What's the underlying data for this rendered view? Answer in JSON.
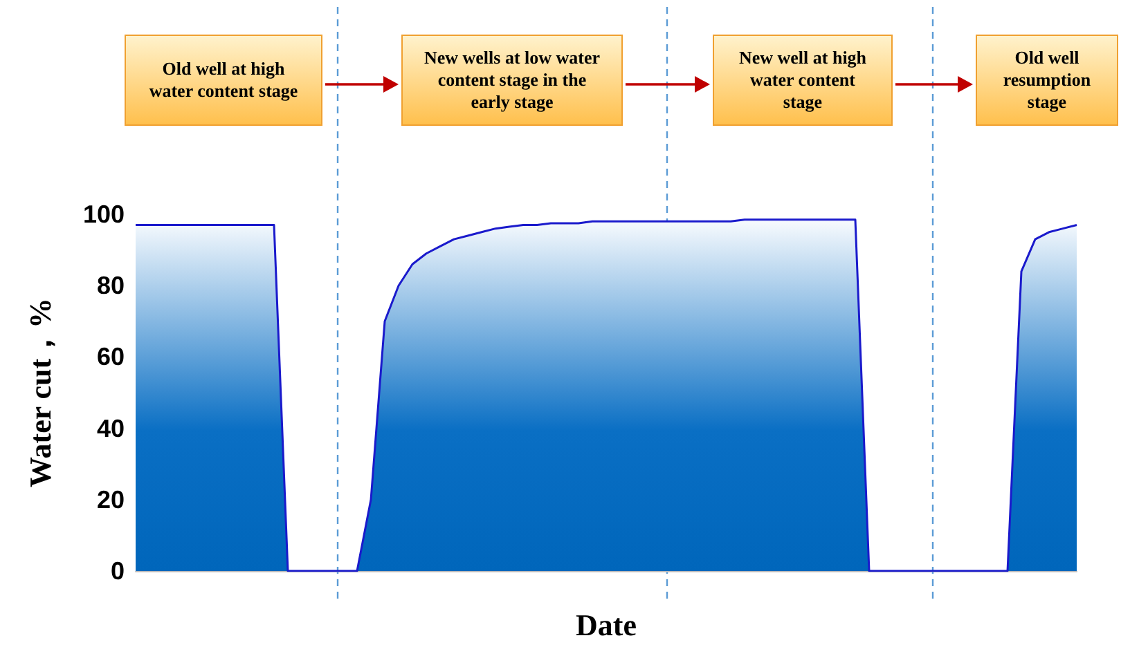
{
  "chart_data": {
    "type": "area",
    "xlabel": "Date",
    "ylabel": "Water cut，%",
    "categories": [
      null,
      null,
      null,
      null,
      null,
      null,
      null,
      null,
      null,
      null,
      null,
      null,
      null,
      null,
      null,
      null,
      null,
      null,
      null,
      null,
      null,
      null,
      null,
      null,
      null,
      null,
      null,
      null,
      null,
      null,
      null,
      null,
      null,
      null,
      null,
      null,
      null,
      null,
      null,
      null,
      null,
      null,
      null,
      null,
      null,
      null,
      null,
      null,
      null,
      null,
      null,
      null,
      null,
      null,
      null,
      null,
      null,
      null,
      null,
      null,
      null,
      null,
      null,
      null,
      null,
      null,
      null,
      null,
      null
    ],
    "series": [
      {
        "color": "#1a1acc",
        "values": [
          97,
          97,
          97,
          97,
          97,
          97,
          97,
          97,
          97,
          97,
          97,
          0,
          0,
          0,
          0,
          0,
          0,
          20,
          70,
          80,
          86,
          89,
          91,
          93,
          94,
          95,
          96,
          96.5,
          97,
          97,
          97.5,
          97.5,
          97.5,
          98,
          98,
          98,
          98,
          98,
          98,
          98,
          98,
          98,
          98,
          98,
          98.5,
          98.5,
          98.5,
          98.5,
          98.5,
          98.5,
          98.5,
          98.5,
          98.5,
          0,
          0,
          0,
          0,
          0,
          0,
          0,
          0,
          0,
          0,
          0,
          84,
          93,
          95,
          96,
          97
        ]
      }
    ],
    "ylim": [
      0,
      100
    ],
    "yticks": [
      0,
      20,
      40,
      60,
      80,
      100
    ],
    "tick_labels": "y",
    "grid": false,
    "annotations": [
      "Old well at high water content stage",
      "New wells at low water content stage in the early stage",
      "New well at high water content stage",
      "Old well resumption stage"
    ]
  }
}
